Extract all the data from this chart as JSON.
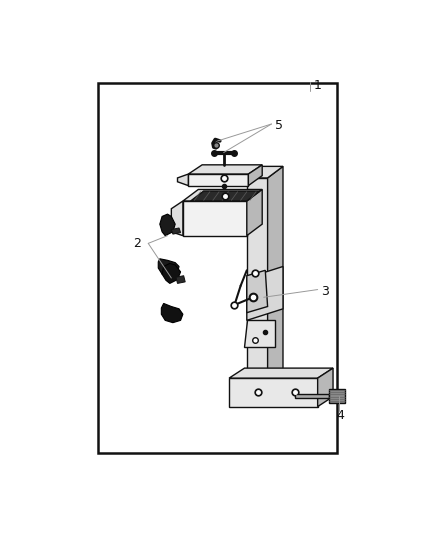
{
  "background_color": "#ffffff",
  "border_color": "#111111",
  "border_linewidth": 1.8,
  "fig_width": 4.38,
  "fig_height": 5.33,
  "dpi": 100,
  "label_fontsize": 9,
  "leader_color": "#999999",
  "part_color": "#111111",
  "part_linewidth": 1.0,
  "gray_light": "#e0e0e0",
  "gray_mid": "#b8b8b8",
  "gray_dark": "#888888",
  "black_fill": "#111111"
}
